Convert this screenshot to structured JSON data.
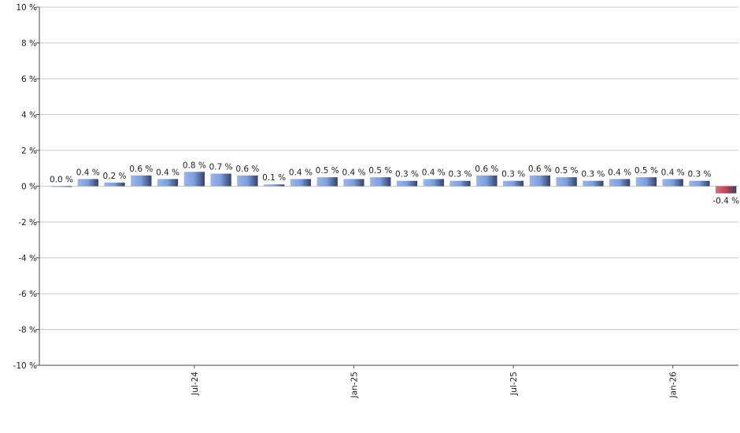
{
  "chart_data": {
    "type": "bar",
    "categories": [
      null,
      null,
      null,
      null,
      null,
      "Jul-24",
      null,
      null,
      null,
      null,
      null,
      "Jan-25",
      null,
      null,
      null,
      null,
      null,
      "Jul-25",
      null,
      null,
      null,
      null,
      null,
      "Jan-26",
      null,
      null
    ],
    "values": [
      0.0,
      0.4,
      0.2,
      0.6,
      0.4,
      0.8,
      0.7,
      0.6,
      0.1,
      0.4,
      0.5,
      0.4,
      0.5,
      0.3,
      0.4,
      0.3,
      0.6,
      0.3,
      0.6,
      0.5,
      0.3,
      0.4,
      0.5,
      0.4,
      0.3,
      -0.4
    ],
    "value_labels": [
      "0.0 %",
      "0.4 %",
      "0.2 %",
      "0.6 %",
      "0.4 %",
      "0.8 %",
      "0.7 %",
      "0.6 %",
      "0.1 %",
      "0.4 %",
      "0.5 %",
      "0.4 %",
      "0.5 %",
      "0.3 %",
      "0.4 %",
      "0.3 %",
      "0.6 %",
      "0.3 %",
      "0.6 %",
      "0.5 %",
      "0.3 %",
      "0.4 %",
      "0.5 %",
      "0.4 %",
      "0.3 %",
      "-0.4 %"
    ],
    "color": "#7b9ee0",
    "negative_color": "#c8404e",
    "ylim": [
      -10,
      10
    ],
    "yticks": [
      {
        "value": -10,
        "label": "-10 %"
      },
      {
        "value": -8,
        "label": "-8 %"
      },
      {
        "value": -6,
        "label": "-6 %"
      },
      {
        "value": -4,
        "label": "-4 %"
      },
      {
        "value": -2,
        "label": "-2 %"
      },
      {
        "value": 0,
        "label": "0 %"
      },
      {
        "value": 2,
        "label": "2 %"
      },
      {
        "value": 4,
        "label": "4 %"
      },
      {
        "value": 6,
        "label": "6 %"
      },
      {
        "value": 8,
        "label": "8 %"
      },
      {
        "value": 10,
        "label": "10 %"
      }
    ],
    "grid": true
  }
}
